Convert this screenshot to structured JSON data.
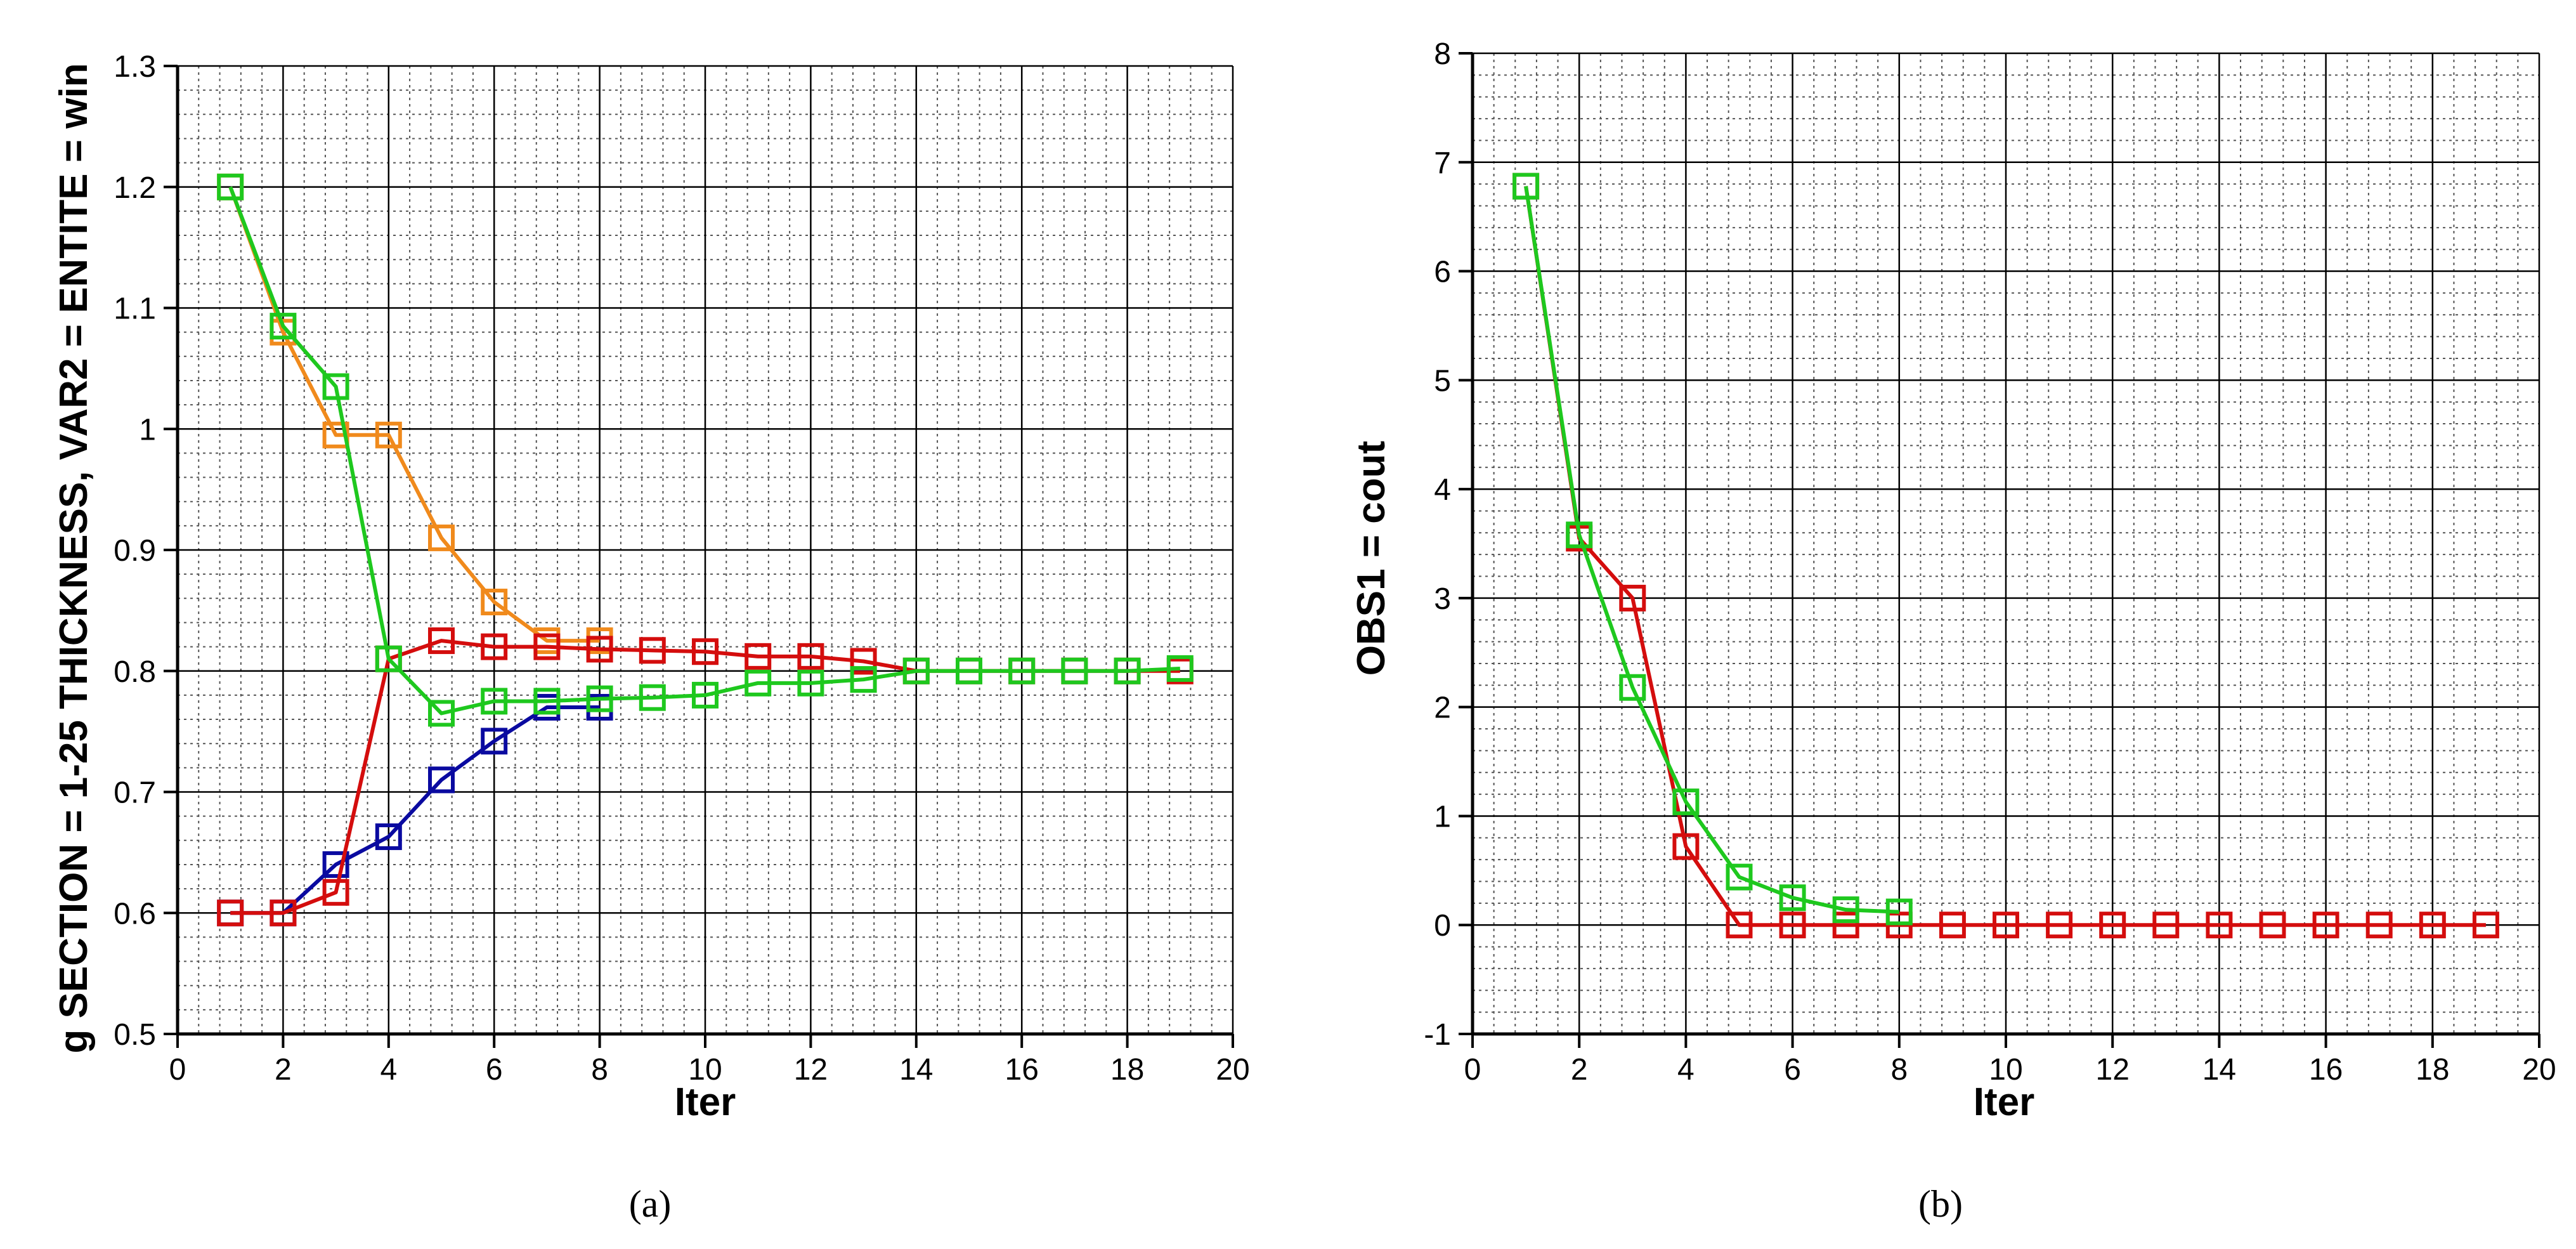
{
  "chart_data": [
    {
      "type": "line",
      "caption": "(a)",
      "xlabel": "Iter",
      "ylabel": "g SECTION = 1-25 THICKNESS, VAR2 = ENTITE = win",
      "xlim": [
        0,
        20
      ],
      "ylim": [
        0.5,
        1.3
      ],
      "xticks": [
        0,
        2,
        4,
        6,
        8,
        10,
        12,
        14,
        16,
        18,
        20
      ],
      "yticks": [
        0.5,
        0.6,
        0.7,
        0.8,
        0.9,
        1.0,
        1.1,
        1.2,
        1.3
      ],
      "ytick_labels": [
        "0.5",
        "0.6",
        "0.7",
        "0.8",
        "0.9",
        "1",
        "1.1",
        "1.2",
        "1.3"
      ],
      "grid": {
        "major": true,
        "minor": true
      },
      "marker": "square",
      "series": [
        {
          "color": "#f08a1c",
          "x": [
            1,
            2,
            3,
            4,
            5,
            6,
            7,
            8
          ],
          "y": [
            1.2,
            1.08,
            0.995,
            0.995,
            0.91,
            0.857,
            0.825,
            0.825
          ]
        },
        {
          "color": "#0a0aa0",
          "x": [
            1,
            2,
            3,
            4,
            5,
            6,
            7,
            8
          ],
          "y": [
            0.6,
            0.6,
            0.64,
            0.663,
            0.71,
            0.742,
            0.77,
            0.77
          ]
        },
        {
          "color": "#d40d0d",
          "x": [
            1,
            2,
            3,
            4,
            5,
            6,
            7,
            8,
            9,
            10,
            11,
            12,
            13,
            14,
            15,
            16,
            17,
            18,
            19
          ],
          "y": [
            0.6,
            0.6,
            0.617,
            0.81,
            0.825,
            0.82,
            0.82,
            0.818,
            0.817,
            0.816,
            0.812,
            0.812,
            0.808,
            0.8,
            0.8,
            0.8,
            0.8,
            0.8,
            0.8
          ]
        },
        {
          "color": "#1ec81e",
          "x": [
            1,
            2,
            3,
            4,
            5,
            6,
            7,
            8,
            9,
            10,
            11,
            12,
            13,
            14,
            15,
            16,
            17,
            18,
            19
          ],
          "y": [
            1.2,
            1.085,
            1.035,
            0.81,
            0.765,
            0.775,
            0.775,
            0.777,
            0.778,
            0.78,
            0.79,
            0.79,
            0.793,
            0.8,
            0.8,
            0.8,
            0.8,
            0.8,
            0.802
          ]
        }
      ]
    },
    {
      "type": "line",
      "caption": "(b)",
      "xlabel": "Iter",
      "ylabel": "OBS1 = cout",
      "xlim": [
        0,
        20
      ],
      "ylim": [
        -1,
        8
      ],
      "xticks": [
        0,
        2,
        4,
        6,
        8,
        10,
        12,
        14,
        16,
        18,
        20
      ],
      "yticks": [
        -1,
        0,
        1,
        2,
        3,
        4,
        5,
        6,
        7,
        8
      ],
      "ytick_labels": [
        "-1",
        "0",
        "1",
        "2",
        "3",
        "4",
        "5",
        "6",
        "7",
        "8"
      ],
      "grid": {
        "major": true,
        "minor": true
      },
      "marker": "square",
      "series": [
        {
          "color": "#d40d0d",
          "x": [
            1,
            2,
            3,
            4,
            5,
            6,
            7,
            8,
            9,
            10,
            11,
            12,
            13,
            14,
            15,
            16,
            17,
            18,
            19
          ],
          "y": [
            6.78,
            3.55,
            3.0,
            0.72,
            0.0,
            0.0,
            0.0,
            0.0,
            0.0,
            0.0,
            0.0,
            0.0,
            0.0,
            0.0,
            0.0,
            0.0,
            0.0,
            0.0,
            0.0
          ]
        },
        {
          "color": "#1ec81e",
          "x": [
            1,
            2,
            3,
            4,
            5,
            6,
            7,
            8
          ],
          "y": [
            6.78,
            3.58,
            2.18,
            1.13,
            0.44,
            0.25,
            0.14,
            0.12
          ]
        }
      ]
    }
  ]
}
